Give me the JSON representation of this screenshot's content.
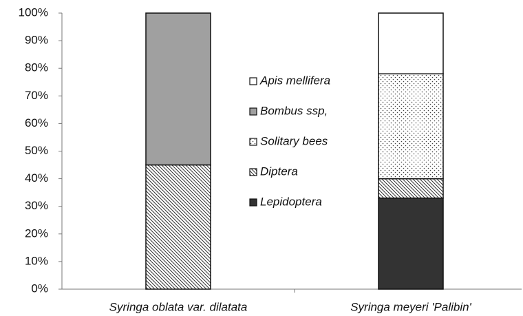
{
  "chart_data": {
    "type": "bar",
    "stacked": true,
    "categories": [
      "Syringa oblata var. dilatata",
      "Syringa meyeri 'Palibin'"
    ],
    "series": [
      {
        "name": "Lepidoptera",
        "color": "#333333",
        "values": [
          0,
          33
        ]
      },
      {
        "name": "Diptera",
        "color": "#ffffff",
        "values": [
          45,
          7
        ]
      },
      {
        "name": "Solitary bees",
        "color": "#ffffff",
        "values": [
          0,
          38
        ]
      },
      {
        "name": "Bombus ssp,",
        "color": "#a0a0a0",
        "values": [
          55,
          0
        ]
      },
      {
        "name": "Apis mellifera",
        "color": "#ffffff",
        "values": [
          0,
          22
        ]
      }
    ],
    "ylim": [
      0,
      100
    ],
    "yticks": [
      {
        "value": 0,
        "label": "0%"
      },
      {
        "value": 10,
        "label": "10%"
      },
      {
        "value": 20,
        "label": "20%"
      },
      {
        "value": 30,
        "label": "30%"
      },
      {
        "value": 40,
        "label": "40%"
      },
      {
        "value": 50,
        "label": "50%"
      },
      {
        "value": 60,
        "label": "60%"
      },
      {
        "value": 70,
        "label": "70%"
      },
      {
        "value": 80,
        "label": "80%"
      },
      {
        "value": 90,
        "label": "90%"
      },
      {
        "value": 100,
        "label": "100%"
      }
    ],
    "legend": "center"
  }
}
